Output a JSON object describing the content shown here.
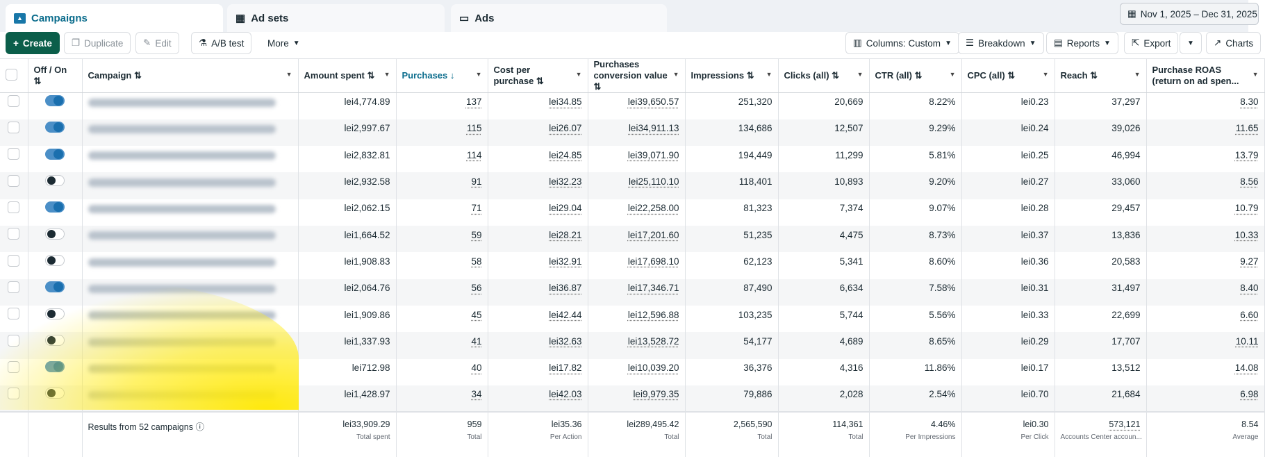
{
  "tabs": [
    {
      "label": "Campaigns",
      "icon": "folder-icon",
      "active": true
    },
    {
      "label": "Ad sets",
      "icon": "grid-icon"
    },
    {
      "label": "Ads",
      "icon": "window-icon"
    }
  ],
  "date_range": "Nov 1, 2025 – Dec 31, 2025",
  "toolbar": {
    "create": "Create",
    "duplicate": "Duplicate",
    "edit": "Edit",
    "ab_test": "A/B test",
    "more": "More",
    "columns": "Columns: Custom",
    "breakdown": "Breakdown",
    "reports": "Reports",
    "export": "Export",
    "charts": "Charts"
  },
  "columns": [
    "Off / On ⇅",
    "Campaign ⇅",
    "Amount spent ⇅",
    "Purchases ↓",
    "Cost per purchase ⇅",
    "Purchases conversion value ⇅",
    "Impressions ⇅",
    "Clicks (all) ⇅",
    "CTR (all) ⇅",
    "CPC (all) ⇅",
    "Reach ⇅",
    "Purchase ROAS (return on ad spen..."
  ],
  "accent": "#0a6c8c",
  "rows": [
    {
      "on": true,
      "v": [
        "lei4,774.89",
        "137",
        "lei34.85",
        "lei39,650.57",
        "251,320",
        "20,669",
        "8.22%",
        "lei0.23",
        "37,297",
        "8.30"
      ]
    },
    {
      "on": true,
      "v": [
        "lei2,997.67",
        "115",
        "lei26.07",
        "lei34,911.13",
        "134,686",
        "12,507",
        "9.29%",
        "lei0.24",
        "39,026",
        "11.65"
      ]
    },
    {
      "on": true,
      "v": [
        "lei2,832.81",
        "114",
        "lei24.85",
        "lei39,071.90",
        "194,449",
        "11,299",
        "5.81%",
        "lei0.25",
        "46,994",
        "13.79"
      ]
    },
    {
      "on": false,
      "v": [
        "lei2,932.58",
        "91",
        "lei32.23",
        "lei25,110.10",
        "118,401",
        "10,893",
        "9.20%",
        "lei0.27",
        "33,060",
        "8.56"
      ]
    },
    {
      "on": true,
      "v": [
        "lei2,062.15",
        "71",
        "lei29.04",
        "lei22,258.00",
        "81,323",
        "7,374",
        "9.07%",
        "lei0.28",
        "29,457",
        "10.79"
      ]
    },
    {
      "on": false,
      "v": [
        "lei1,664.52",
        "59",
        "lei28.21",
        "lei17,201.60",
        "51,235",
        "4,475",
        "8.73%",
        "lei0.37",
        "13,836",
        "10.33"
      ]
    },
    {
      "on": false,
      "v": [
        "lei1,908.83",
        "58",
        "lei32.91",
        "lei17,698.10",
        "62,123",
        "5,341",
        "8.60%",
        "lei0.36",
        "20,583",
        "9.27"
      ]
    },
    {
      "on": true,
      "v": [
        "lei2,064.76",
        "56",
        "lei36.87",
        "lei17,346.71",
        "87,490",
        "6,634",
        "7.58%",
        "lei0.31",
        "31,497",
        "8.40"
      ]
    },
    {
      "on": false,
      "v": [
        "lei1,909.86",
        "45",
        "lei42.44",
        "lei12,596.88",
        "103,235",
        "5,744",
        "5.56%",
        "lei0.33",
        "22,699",
        "6.60"
      ]
    },
    {
      "on": false,
      "v": [
        "lei1,337.93",
        "41",
        "lei32.63",
        "lei13,528.72",
        "54,177",
        "4,689",
        "8.65%",
        "lei0.29",
        "17,707",
        "10.11"
      ]
    },
    {
      "on": true,
      "v": [
        "lei712.98",
        "40",
        "lei17.82",
        "lei10,039.20",
        "36,376",
        "4,316",
        "11.86%",
        "lei0.17",
        "13,512",
        "14.08"
      ]
    },
    {
      "on": false,
      "v": [
        "lei1,428.97",
        "34",
        "lei42.03",
        "lei9,979.35",
        "79,886",
        "2,028",
        "2.54%",
        "lei0.70",
        "21,684",
        "6.98"
      ]
    }
  ],
  "footer": {
    "label": "Results from 52 campaigns",
    "totals": [
      {
        "v": "lei33,909.29",
        "l": "Total spent"
      },
      {
        "v": "959",
        "l": "Total"
      },
      {
        "v": "lei35.36",
        "l": "Per Action"
      },
      {
        "v": "lei289,495.42",
        "l": "Total"
      },
      {
        "v": "2,565,590",
        "l": "Total"
      },
      {
        "v": "114,361",
        "l": "Total"
      },
      {
        "v": "4.46%",
        "l": "Per Impressions"
      },
      {
        "v": "lei0.30",
        "l": "Per Click"
      },
      {
        "v": "573,121",
        "l": "Accounts Center accoun..."
      },
      {
        "v": "8.54",
        "l": "Average"
      }
    ]
  }
}
